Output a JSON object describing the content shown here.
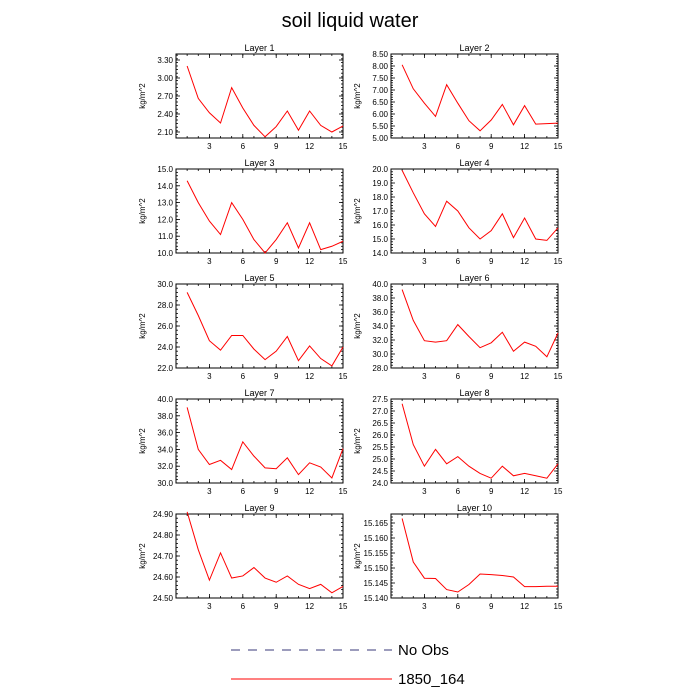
{
  "title": "soil liquid water",
  "chart_data": [
    {
      "type": "line",
      "title": "Layer 1",
      "ylabel": "kg/m^2",
      "xlim": [
        0,
        15
      ],
      "ylim": [
        2.0,
        3.4
      ],
      "xticks": [
        "3",
        "6",
        "9",
        "12",
        "15"
      ],
      "yticks": [
        "2.10",
        "2.40",
        "2.70",
        "3.00",
        "3.30"
      ],
      "series": [
        {
          "name": "1850_164",
          "color": "#ff0000",
          "x": [
            1,
            2,
            3,
            4,
            5,
            6,
            7,
            8,
            9,
            10,
            11,
            12,
            13,
            14,
            15
          ],
          "values": [
            3.2,
            2.66,
            2.42,
            2.25,
            2.84,
            2.5,
            2.21,
            2.02,
            2.19,
            2.45,
            2.13,
            2.45,
            2.21,
            2.1,
            2.2
          ]
        }
      ]
    },
    {
      "type": "line",
      "title": "Layer 2",
      "ylabel": "kg/m^2",
      "xlim": [
        0,
        15
      ],
      "ylim": [
        5.0,
        8.5
      ],
      "xticks": [
        "3",
        "6",
        "9",
        "12",
        "15"
      ],
      "yticks": [
        "5.00",
        "5.50",
        "6.00",
        "6.50",
        "7.00",
        "7.50",
        "8.00",
        "8.50"
      ],
      "series": [
        {
          "name": "1850_164",
          "color": "#ff0000",
          "x": [
            1,
            2,
            3,
            4,
            5,
            6,
            7,
            8,
            9,
            10,
            11,
            12,
            13,
            14,
            15
          ],
          "values": [
            8.05,
            7.05,
            6.45,
            5.9,
            7.22,
            6.45,
            5.72,
            5.3,
            5.75,
            6.4,
            5.55,
            6.35,
            5.58,
            5.6,
            5.62
          ]
        }
      ]
    },
    {
      "type": "line",
      "title": "Layer 3",
      "ylabel": "kg/m^2",
      "xlim": [
        0,
        15
      ],
      "ylim": [
        10.0,
        15.0
      ],
      "xticks": [
        "3",
        "6",
        "9",
        "12",
        "15"
      ],
      "yticks": [
        "10.0",
        "11.0",
        "12.0",
        "13.0",
        "14.0",
        "15.0"
      ],
      "series": [
        {
          "name": "1850_164",
          "color": "#ff0000",
          "x": [
            1,
            2,
            3,
            4,
            5,
            6,
            7,
            8,
            9,
            10,
            11,
            12,
            13,
            14,
            15
          ],
          "values": [
            14.3,
            13.0,
            11.9,
            11.1,
            13.0,
            12.0,
            10.8,
            10.0,
            10.8,
            11.8,
            10.3,
            11.8,
            10.2,
            10.4,
            10.7
          ]
        }
      ]
    },
    {
      "type": "line",
      "title": "Layer 4",
      "ylabel": "kg/m^2",
      "xlim": [
        0,
        15
      ],
      "ylim": [
        14.0,
        20.0
      ],
      "xticks": [
        "3",
        "6",
        "9",
        "12",
        "15"
      ],
      "yticks": [
        "14.0",
        "15.0",
        "16.0",
        "17.0",
        "18.0",
        "19.0",
        "20.0"
      ],
      "series": [
        {
          "name": "1850_164",
          "color": "#ff0000",
          "x": [
            1,
            2,
            3,
            4,
            5,
            6,
            7,
            8,
            9,
            10,
            11,
            12,
            13,
            14,
            15
          ],
          "values": [
            19.9,
            18.3,
            16.8,
            15.9,
            17.7,
            17.0,
            15.8,
            15.0,
            15.6,
            16.8,
            15.1,
            16.5,
            15.0,
            14.9,
            15.8
          ]
        }
      ]
    },
    {
      "type": "line",
      "title": "Layer 5",
      "ylabel": "kg/m^2",
      "xlim": [
        0,
        15
      ],
      "ylim": [
        22.0,
        30.0
      ],
      "xticks": [
        "3",
        "6",
        "9",
        "12",
        "15"
      ],
      "yticks": [
        "22.0",
        "24.0",
        "26.0",
        "28.0",
        "30.0"
      ],
      "series": [
        {
          "name": "1850_164",
          "color": "#ff0000",
          "x": [
            1,
            2,
            3,
            4,
            5,
            6,
            7,
            8,
            9,
            10,
            11,
            12,
            13,
            14,
            15
          ],
          "values": [
            29.2,
            27.0,
            24.6,
            23.7,
            25.1,
            25.1,
            23.8,
            22.8,
            23.6,
            25.0,
            22.7,
            24.1,
            22.9,
            22.2,
            24.0
          ]
        }
      ]
    },
    {
      "type": "line",
      "title": "Layer 6",
      "ylabel": "kg/m^2",
      "xlim": [
        0,
        15
      ],
      "ylim": [
        28.0,
        40.0
      ],
      "xticks": [
        "3",
        "6",
        "9",
        "12",
        "15"
      ],
      "yticks": [
        "28.0",
        "30.0",
        "32.0",
        "34.0",
        "36.0",
        "38.0",
        "40.0"
      ],
      "series": [
        {
          "name": "1850_164",
          "color": "#ff0000",
          "x": [
            1,
            2,
            3,
            4,
            5,
            6,
            7,
            8,
            9,
            10,
            11,
            12,
            13,
            14,
            15
          ],
          "values": [
            39.2,
            34.8,
            31.9,
            31.7,
            31.9,
            34.2,
            32.5,
            30.9,
            31.6,
            33.1,
            30.4,
            31.7,
            31.1,
            29.6,
            33.0
          ]
        }
      ]
    },
    {
      "type": "line",
      "title": "Layer 7",
      "ylabel": "kg/m^2",
      "xlim": [
        0,
        15
      ],
      "ylim": [
        30.0,
        40.0
      ],
      "xticks": [
        "3",
        "6",
        "9",
        "12",
        "15"
      ],
      "yticks": [
        "30.0",
        "32.0",
        "34.0",
        "36.0",
        "38.0",
        "40.0"
      ],
      "series": [
        {
          "name": "1850_164",
          "color": "#ff0000",
          "x": [
            1,
            2,
            3,
            4,
            5,
            6,
            7,
            8,
            9,
            10,
            11,
            12,
            13,
            14,
            15
          ],
          "values": [
            39.0,
            34.0,
            32.2,
            32.7,
            31.6,
            34.9,
            33.2,
            31.8,
            31.7,
            33.0,
            31.0,
            32.4,
            31.9,
            30.6,
            34.1
          ]
        }
      ]
    },
    {
      "type": "line",
      "title": "Layer 8",
      "ylabel": "kg/m^2",
      "xlim": [
        0,
        15
      ],
      "ylim": [
        24.0,
        27.5
      ],
      "xticks": [
        "3",
        "6",
        "9",
        "12",
        "15"
      ],
      "yticks": [
        "24.0",
        "24.5",
        "25.0",
        "25.5",
        "26.0",
        "26.5",
        "27.0",
        "27.5"
      ],
      "series": [
        {
          "name": "1850_164",
          "color": "#ff0000",
          "x": [
            1,
            2,
            3,
            4,
            5,
            6,
            7,
            8,
            9,
            10,
            11,
            12,
            13,
            14,
            15
          ],
          "values": [
            27.3,
            25.6,
            24.7,
            25.4,
            24.8,
            25.1,
            24.7,
            24.4,
            24.2,
            24.7,
            24.3,
            24.4,
            24.3,
            24.2,
            24.8
          ]
        }
      ]
    },
    {
      "type": "line",
      "title": "Layer 9",
      "ylabel": "kg/m^2",
      "xlim": [
        0,
        15
      ],
      "ylim": [
        24.5,
        24.9
      ],
      "xticks": [
        "3",
        "6",
        "9",
        "12",
        "15"
      ],
      "yticks": [
        "24.50",
        "24.60",
        "24.70",
        "24.80",
        "24.90"
      ],
      "series": [
        {
          "name": "1850_164",
          "color": "#ff0000",
          "x": [
            1,
            2,
            3,
            4,
            5,
            6,
            7,
            8,
            9,
            10,
            11,
            12,
            13,
            14,
            15
          ],
          "values": [
            24.91,
            24.73,
            24.585,
            24.715,
            24.595,
            24.605,
            24.645,
            24.595,
            24.575,
            24.605,
            24.565,
            24.545,
            24.565,
            24.525,
            24.555
          ]
        }
      ]
    },
    {
      "type": "line",
      "title": "Layer 10",
      "ylabel": "kg/m^2",
      "xlim": [
        0,
        15
      ],
      "ylim": [
        15.14,
        15.168
      ],
      "xticks": [
        "3",
        "6",
        "9",
        "12",
        "15"
      ],
      "yticks": [
        "15.140",
        "15.145",
        "15.150",
        "15.155",
        "15.160",
        "15.165"
      ],
      "series": [
        {
          "name": "1850_164",
          "color": "#ff0000",
          "x": [
            1,
            2,
            3,
            4,
            5,
            6,
            7,
            8,
            9,
            10,
            11,
            12,
            13,
            14,
            15
          ],
          "values": [
            15.1665,
            15.152,
            15.1466,
            15.1465,
            15.1428,
            15.142,
            15.1445,
            15.148,
            15.1478,
            15.1475,
            15.147,
            15.1438,
            15.1438,
            15.1439,
            15.1439
          ]
        }
      ]
    }
  ],
  "legend": [
    {
      "label": "No Obs",
      "color": "#3a3a78",
      "dash": "9,8"
    },
    {
      "label": "1850_164",
      "color": "#ff0000",
      "dash": ""
    }
  ]
}
